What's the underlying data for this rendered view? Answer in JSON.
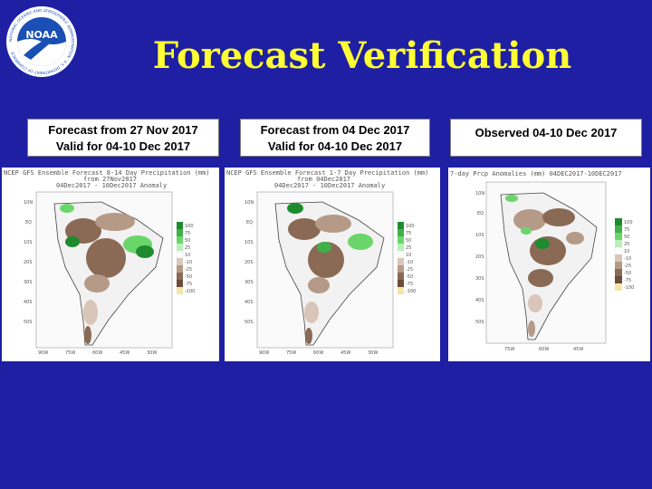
{
  "header": {
    "title": "Forecast Verification",
    "logo_text": "NOAA",
    "logo_ring_text": "NATIONAL OCEANIC AND ATMOSPHERIC ADMINISTRATION · U.S. DEPARTMENT OF COMMERCE"
  },
  "panels": [
    {
      "caption_line1": "Forecast from 27 Nov 2017",
      "caption_line2": "Valid for 04-10 Dec 2017",
      "map_title": "NCEP GFS Ensemble Forecast 8-14 Day Precipitation (mm)",
      "map_subtitle": "from 27Nov2017",
      "map_subtitle2": "04Dec2017 - 10Dec2017 Anomaly"
    },
    {
      "caption_line1": "Forecast from 04 Dec 2017",
      "caption_line2": "Valid for 04-10 Dec 2017",
      "map_title": "NCEP GFS Ensemble Forecast 1-7 Day Precipitation (mm)",
      "map_subtitle": "from 04Dec2017",
      "map_subtitle2": "04Dec2017 - 10Dec2017 Anomaly"
    },
    {
      "caption_line1": "Observed 04-10 Dec 2017",
      "caption_line2": "",
      "map_title": "7-day Prcp Anomalies (mm) 04DEC2017-10DEC2017",
      "map_subtitle": "",
      "map_subtitle2": ""
    }
  ],
  "legend": [
    "100",
    "75",
    "50",
    "25",
    "10",
    "-10",
    "-25",
    "-50",
    "-75",
    "-100"
  ],
  "colors": {
    "background": "#1f1fa3",
    "title": "#ffff33",
    "dry_dark": "#8a6a55",
    "dry_mid": "#b59a88",
    "dry_light": "#d9c6b8",
    "wet_light": "#b8f0b8",
    "wet_mid": "#6ad66a",
    "wet_dark": "#1e8c2e",
    "land": "#f2f2f2"
  }
}
